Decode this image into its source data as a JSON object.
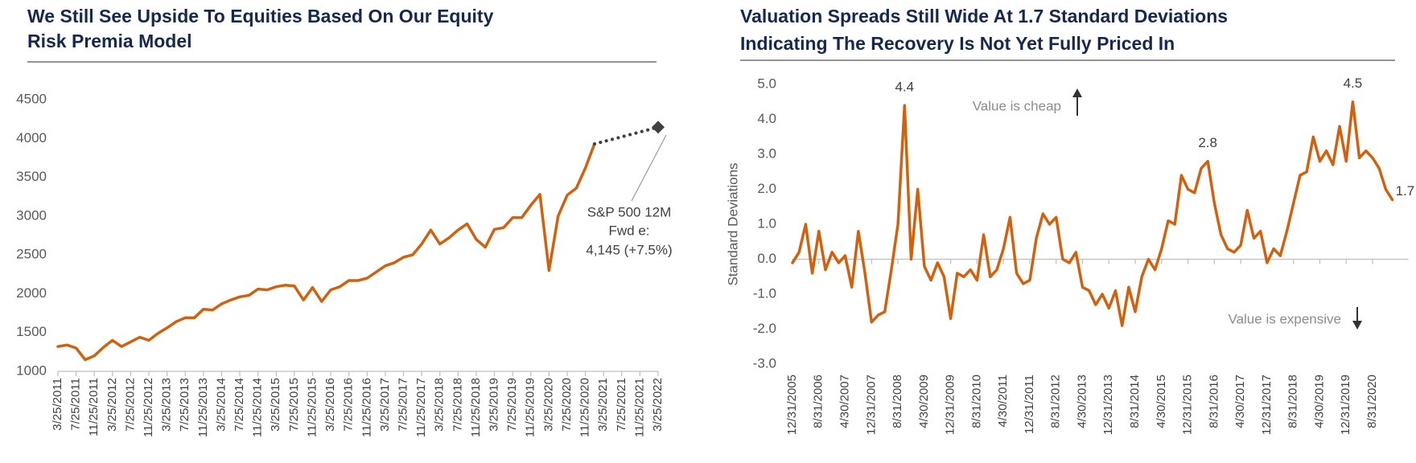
{
  "chart_data": [
    {
      "type": "line",
      "title": [
        "We Still See Upside To Equities Based On Our Equity",
        "Risk Premia Model"
      ],
      "categories": [
        "3/25/2011",
        null,
        "7/25/2011",
        null,
        "11/25/2011",
        null,
        "3/25/2012",
        null,
        "7/25/2012",
        null,
        "11/25/2012",
        null,
        "3/25/2013",
        null,
        "7/25/2013",
        null,
        "11/25/2013",
        null,
        "3/25/2014",
        null,
        "7/25/2014",
        null,
        "11/25/2014",
        null,
        "3/25/2015",
        null,
        "7/25/2015",
        null,
        "11/25/2015",
        null,
        "3/25/2016",
        null,
        "7/25/2016",
        null,
        "11/25/2016",
        null,
        "3/25/2017",
        null,
        "7/25/2017",
        null,
        "11/25/2017",
        null,
        "3/25/2018",
        null,
        "7/25/2018",
        null,
        "11/25/2018",
        null,
        "3/25/2019",
        null,
        "7/25/2019",
        null,
        "11/25/2019",
        null,
        "3/25/2020",
        null,
        "7/25/2020",
        null,
        "11/25/2020",
        null,
        "3/25/2021",
        null,
        "7/25/2021",
        null,
        "11/25/2021",
        null,
        "3/25/2022"
      ],
      "series": [
        {
          "name": "S&P 500",
          "color": "#d0620f",
          "line_style": "solid",
          "values": [
            1320,
            1340,
            1300,
            1150,
            1200,
            1310,
            1400,
            1320,
            1380,
            1440,
            1400,
            1490,
            1560,
            1640,
            1690,
            1690,
            1800,
            1790,
            1870,
            1920,
            1960,
            1980,
            2060,
            2050,
            2090,
            2110,
            2100,
            1920,
            2080,
            1900,
            2050,
            2090,
            2170,
            2170,
            2200,
            2280,
            2360,
            2400,
            2470,
            2500,
            2640,
            2820,
            2640,
            2720,
            2820,
            2900,
            2700,
            2600,
            2830,
            2850,
            2980,
            2980,
            3140,
            3280,
            2300,
            3000,
            3270,
            3360,
            3620,
            3930,
            null,
            null,
            null,
            null,
            null,
            null,
            null
          ]
        },
        {
          "name": "S&P 500 12M Fwd e",
          "color": "#404040",
          "line_style": "dotted",
          "end_marker": "diamond",
          "values": [
            null,
            null,
            null,
            null,
            null,
            null,
            null,
            null,
            null,
            null,
            null,
            null,
            null,
            null,
            null,
            null,
            null,
            null,
            null,
            null,
            null,
            null,
            null,
            null,
            null,
            null,
            null,
            null,
            null,
            null,
            null,
            null,
            null,
            null,
            null,
            null,
            null,
            null,
            null,
            null,
            null,
            null,
            null,
            null,
            null,
            null,
            null,
            null,
            null,
            null,
            null,
            null,
            null,
            null,
            null,
            null,
            null,
            null,
            null,
            3930,
            3961,
            3991,
            4022,
            4053,
            4084,
            4114,
            4145
          ]
        }
      ],
      "annotation": [
        "S&P 500 12M",
        "Fwd e:",
        "4,145 (+7.5%)"
      ],
      "ylim": [
        1000,
        4500
      ],
      "yticks": [
        1000,
        1500,
        2000,
        2500,
        3000,
        3500,
        4000,
        4500
      ]
    },
    {
      "type": "line",
      "title": [
        "Valuation Spreads Still Wide At 1.7 Standard Deviations",
        "Indicating The Recovery Is Not Yet Fully Priced In"
      ],
      "y_label": "Standard Deviations",
      "annotations": [
        "Value is cheap",
        "Value is expensive"
      ],
      "categories": [
        "12/31/2005",
        null,
        null,
        null,
        "8/31/2006",
        null,
        null,
        null,
        "4/30/2007",
        null,
        null,
        null,
        "12/31/2007",
        null,
        null,
        null,
        "8/31/2008",
        null,
        null,
        null,
        "4/30/2009",
        null,
        null,
        null,
        "12/31/2009",
        null,
        null,
        null,
        "8/31/2010",
        null,
        null,
        null,
        "4/30/2011",
        null,
        null,
        null,
        "12/31/2011",
        null,
        null,
        null,
        "8/31/2012",
        null,
        null,
        null,
        "4/30/2013",
        null,
        null,
        null,
        "12/31/2013",
        null,
        null,
        null,
        "8/31/2014",
        null,
        null,
        null,
        "4/30/2015",
        null,
        null,
        null,
        "12/31/2015",
        null,
        null,
        null,
        "8/31/2016",
        null,
        null,
        null,
        "4/30/2017",
        null,
        null,
        null,
        "12/31/2017",
        null,
        null,
        null,
        "8/31/2018",
        null,
        null,
        null,
        "4/30/2019",
        null,
        null,
        null,
        "12/31/2019",
        null,
        null,
        null,
        "8/31/2020",
        null,
        null,
        null
      ],
      "series": [
        {
          "name": "Valuation Spread",
          "color": "#d0620f",
          "line_style": "solid",
          "values": [
            -0.1,
            0.2,
            1.0,
            -0.4,
            0.8,
            -0.3,
            0.2,
            -0.1,
            0.1,
            -0.8,
            0.8,
            -0.4,
            -1.8,
            -1.6,
            -1.5,
            -0.3,
            1.0,
            4.4,
            0.0,
            2.0,
            -0.2,
            -0.6,
            -0.1,
            -0.5,
            -1.7,
            -0.4,
            -0.5,
            -0.3,
            -0.6,
            0.7,
            -0.5,
            -0.3,
            0.3,
            1.2,
            -0.4,
            -0.7,
            -0.6,
            0.6,
            1.3,
            1.0,
            1.2,
            0.0,
            -0.1,
            0.2,
            -0.8,
            -0.9,
            -1.3,
            -1.0,
            -1.4,
            -0.9,
            -1.9,
            -0.8,
            -1.5,
            -0.5,
            0.0,
            -0.3,
            0.3,
            1.1,
            1.0,
            2.4,
            2.0,
            1.9,
            2.6,
            2.8,
            1.6,
            0.7,
            0.3,
            0.2,
            0.4,
            1.4,
            0.6,
            0.8,
            -0.1,
            0.3,
            0.1,
            0.8,
            1.6,
            2.4,
            2.5,
            3.5,
            2.8,
            3.1,
            2.7,
            3.8,
            2.8,
            4.5,
            2.9,
            3.1,
            2.9,
            2.6,
            2.0,
            1.7
          ],
          "value_labels": [
            null,
            null,
            null,
            null,
            null,
            null,
            null,
            null,
            null,
            null,
            null,
            null,
            null,
            null,
            null,
            null,
            null,
            "4.4",
            null,
            null,
            null,
            null,
            null,
            null,
            null,
            null,
            null,
            null,
            null,
            null,
            null,
            null,
            null,
            null,
            null,
            null,
            null,
            null,
            null,
            null,
            null,
            null,
            null,
            null,
            null,
            null,
            null,
            null,
            null,
            null,
            null,
            null,
            null,
            null,
            null,
            null,
            null,
            null,
            null,
            null,
            null,
            null,
            null,
            "2.8",
            null,
            null,
            null,
            null,
            null,
            null,
            null,
            null,
            null,
            null,
            null,
            null,
            null,
            null,
            null,
            null,
            null,
            null,
            null,
            null,
            null,
            "4.5",
            null,
            null,
            null,
            null,
            null,
            "1.7"
          ]
        }
      ],
      "ylim": [
        -3,
        5
      ],
      "yticks": [
        {
          "value": -3,
          "label": "-3.0"
        },
        {
          "value": -2,
          "label": "-2.0"
        },
        {
          "value": -1,
          "label": "-1.0"
        },
        {
          "value": 0,
          "label": "0.0"
        },
        {
          "value": 1,
          "label": "1.0"
        },
        {
          "value": 2,
          "label": "2.0"
        },
        {
          "value": 3,
          "label": "3.0"
        },
        {
          "value": 4,
          "label": "4.0"
        },
        {
          "value": 5,
          "label": "5.0"
        }
      ]
    }
  ]
}
